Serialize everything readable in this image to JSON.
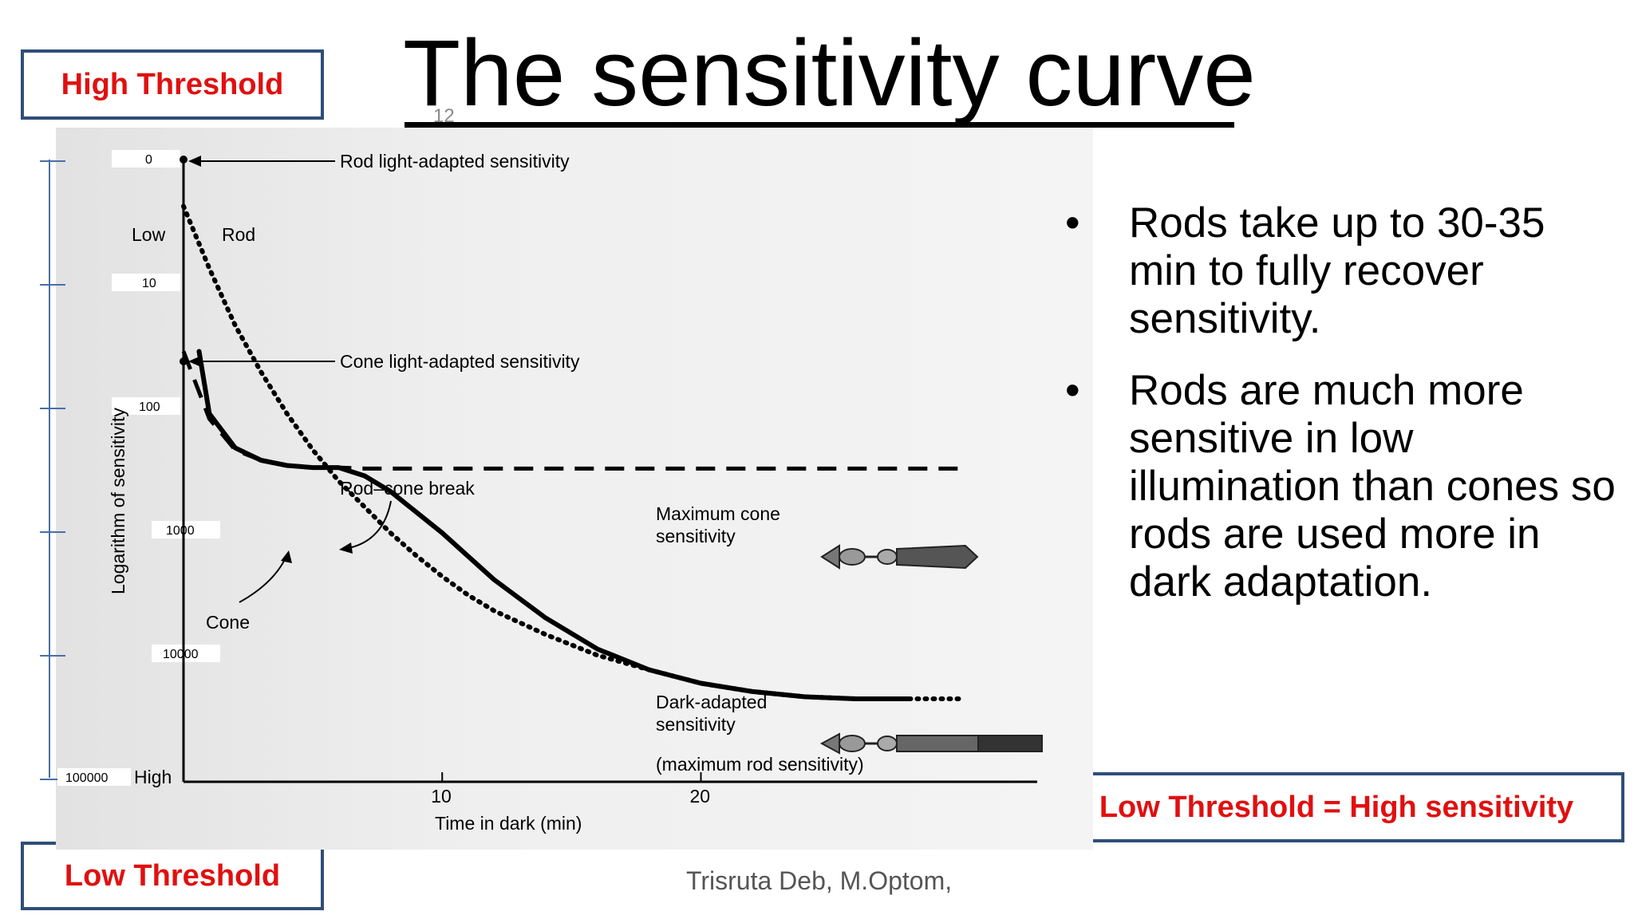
{
  "slide": {
    "title": "The sensitivity curve",
    "slide_number": "12",
    "footer": "Trisruta Deb, M.Optom,"
  },
  "labels": {
    "high_threshold": "High Threshold",
    "low_threshold": "Low Threshold",
    "equation": "Low Threshold = High sensitivity"
  },
  "bullets": [
    "Rods take up to 30-35 min to fully recover sensitivity.",
    "Rods are much more sensitive in low illumination than cones so rods are used more in dark adaptation."
  ],
  "chart_data": {
    "type": "line",
    "xlabel": "Time in dark (min)",
    "ylabel": "Logarithm of sensitivity",
    "x_ticks": [
      10,
      20
    ],
    "xlim": [
      0,
      33
    ],
    "y_axis_words": {
      "top": "Low",
      "bottom": "High"
    },
    "threshold_ticks": [
      "0",
      "10",
      "100",
      "1000",
      "10000",
      "100000"
    ],
    "series": [
      {
        "name": "Rod",
        "style": "dotted",
        "points": [
          [
            0,
            0.45
          ],
          [
            1,
            1.05
          ],
          [
            2,
            1.6
          ],
          [
            3,
            2.05
          ],
          [
            4,
            2.45
          ],
          [
            5,
            2.8
          ],
          [
            6,
            3.1
          ],
          [
            7,
            3.35
          ],
          [
            8,
            3.6
          ],
          [
            9,
            3.82
          ],
          [
            10,
            4.02
          ],
          [
            11,
            4.2
          ],
          [
            12,
            4.35
          ],
          [
            14,
            4.58
          ],
          [
            16,
            4.78
          ],
          [
            18,
            4.92
          ],
          [
            20,
            5.05
          ],
          [
            22,
            5.13
          ],
          [
            24,
            5.18
          ],
          [
            26,
            5.2
          ],
          [
            28,
            5.2
          ],
          [
            30,
            5.2
          ]
        ]
      },
      {
        "name": "Cone",
        "style": "dashed",
        "points": [
          [
            0,
            1.85
          ],
          [
            1,
            2.5
          ],
          [
            2,
            2.8
          ],
          [
            3,
            2.9
          ],
          [
            4,
            2.95
          ],
          [
            5,
            2.97
          ],
          [
            6,
            2.97
          ],
          [
            7,
            2.98
          ],
          [
            30,
            2.98
          ]
        ]
      },
      {
        "name": "Dark-adapted sensitivity",
        "style": "solid",
        "points": [
          [
            0.6,
            1.85
          ],
          [
            1,
            2.45
          ],
          [
            2,
            2.78
          ],
          [
            3,
            2.9
          ],
          [
            4,
            2.95
          ],
          [
            5,
            2.97
          ],
          [
            6,
            2.97
          ],
          [
            7,
            3.05
          ],
          [
            8,
            3.2
          ],
          [
            10,
            3.6
          ],
          [
            12,
            4.05
          ],
          [
            14,
            4.42
          ],
          [
            16,
            4.72
          ],
          [
            18,
            4.92
          ],
          [
            20,
            5.05
          ],
          [
            22,
            5.13
          ],
          [
            24,
            5.18
          ],
          [
            26,
            5.2
          ],
          [
            28,
            5.2
          ]
        ]
      }
    ],
    "annotations": [
      "Rod light-adapted sensitivity",
      "Cone light-adapted sensitivity",
      "Rod–cone break",
      "Maximum cone",
      "sensitivity",
      "Dark-adapted",
      "sensitivity",
      "(maximum rod sensitivity)",
      "Rod",
      "Cone"
    ]
  }
}
